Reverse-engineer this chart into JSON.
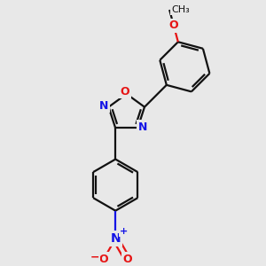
{
  "bg": "#e8e8e8",
  "bc": "#111111",
  "nc": "#1414e6",
  "oc": "#e61414",
  "lw": 1.6,
  "lw2": 1.6,
  "figsize": [
    3.0,
    3.0
  ],
  "dpi": 100,
  "xlim": [
    -4.5,
    5.5
  ],
  "ylim": [
    -6.5,
    5.5
  ],
  "ring_r": 1.2,
  "small_ring_r": 0.88
}
